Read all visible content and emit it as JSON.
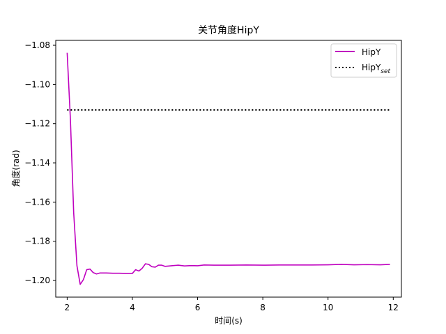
{
  "chart_data": {
    "type": "line",
    "title": "关节角度HipY",
    "xlabel": "时间(s)",
    "ylabel": "角度(rad)",
    "xlim": [
      1.65,
      12.25
    ],
    "ylim": [
      -1.2085,
      -1.0775
    ],
    "x_ticks": [
      2,
      4,
      6,
      8,
      10,
      12
    ],
    "x_tick_labels": [
      "2",
      "4",
      "6",
      "8",
      "10",
      "12"
    ],
    "y_ticks": [
      -1.08,
      -1.1,
      -1.12,
      -1.14,
      -1.16,
      -1.18,
      -1.2
    ],
    "y_tick_labels": [
      "−1.08",
      "−1.10",
      "−1.12",
      "−1.14",
      "−1.16",
      "−1.18",
      "−1.20"
    ],
    "grid": false,
    "legend_position": "upper right",
    "series": [
      {
        "name": "HipY",
        "color": "#bf00bf",
        "style": "solid",
        "x": [
          2.0,
          2.1,
          2.2,
          2.3,
          2.4,
          2.5,
          2.6,
          2.7,
          2.8,
          2.9,
          3.0,
          3.2,
          3.4,
          3.6,
          3.8,
          4.0,
          4.1,
          4.2,
          4.3,
          4.4,
          4.5,
          4.6,
          4.7,
          4.8,
          4.9,
          5.0,
          5.2,
          5.4,
          5.6,
          5.8,
          6.0,
          6.2,
          6.5,
          7.0,
          7.5,
          8.0,
          8.5,
          9.0,
          9.5,
          10.0,
          10.4,
          10.8,
          11.2,
          11.6,
          11.9
        ],
        "y": [
          -1.0838,
          -1.118,
          -1.1655,
          -1.1925,
          -1.202,
          -1.1995,
          -1.1945,
          -1.1942,
          -1.196,
          -1.1967,
          -1.1962,
          -1.1962,
          -1.1963,
          -1.1963,
          -1.1964,
          -1.1964,
          -1.1945,
          -1.1952,
          -1.1938,
          -1.1915,
          -1.1918,
          -1.193,
          -1.1932,
          -1.1922,
          -1.1922,
          -1.1928,
          -1.1925,
          -1.1922,
          -1.1926,
          -1.1924,
          -1.1925,
          -1.1921,
          -1.1922,
          -1.1922,
          -1.1921,
          -1.1922,
          -1.1921,
          -1.1921,
          -1.1921,
          -1.192,
          -1.1918,
          -1.192,
          -1.1919,
          -1.192,
          -1.1918
        ]
      },
      {
        "name": "HipY",
        "name_subscript": "set",
        "color": "#000000",
        "style": "dotted",
        "x": [
          2.0,
          11.9
        ],
        "y": [
          -1.113,
          -1.113
        ]
      }
    ]
  }
}
